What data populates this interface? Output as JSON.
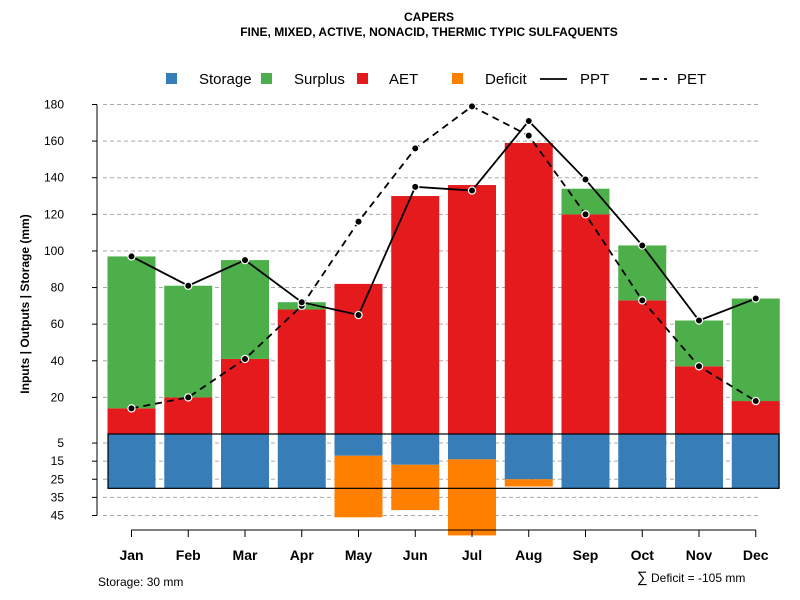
{
  "chart_data": {
    "type": "bar",
    "title": "CAPERS",
    "subtitle": "FINE, MIXED, ACTIVE, NONACID, THERMIC TYPIC SULFAQUENTS",
    "ylabel": "Inputs | Outputs | Storage    (mm)",
    "categories": [
      "Jan",
      "Feb",
      "Mar",
      "Apr",
      "May",
      "Jun",
      "Jul",
      "Aug",
      "Sep",
      "Oct",
      "Nov",
      "Dec"
    ],
    "upper_ylim": [
      0,
      180
    ],
    "upper_yticks": [
      20,
      40,
      60,
      80,
      100,
      120,
      140,
      160,
      180
    ],
    "lower_ylim": [
      0,
      45
    ],
    "lower_yticks": [
      5,
      15,
      25,
      35,
      45
    ],
    "series": [
      {
        "name": "AET",
        "type": "bar",
        "color": "#E41A1C",
        "values": [
          14,
          20,
          41,
          68,
          82,
          130,
          136,
          159,
          120,
          73,
          37,
          18
        ]
      },
      {
        "name": "Surplus",
        "type": "bar",
        "color": "#4DAF4A",
        "values": [
          83,
          61,
          54,
          4,
          0,
          0,
          0,
          0,
          14,
          30,
          25,
          56
        ]
      },
      {
        "name": "Storage",
        "type": "bar",
        "color": "#377EB8",
        "values": [
          30,
          30,
          30,
          30,
          12,
          17,
          14,
          25,
          30,
          30,
          30,
          30
        ]
      },
      {
        "name": "Deficit",
        "type": "bar",
        "color": "#FF7F00",
        "values": [
          0,
          0,
          0,
          0,
          34,
          25,
          42,
          4,
          0,
          0,
          0,
          0
        ]
      },
      {
        "name": "PPT",
        "type": "line",
        "style": "solid",
        "values": [
          97,
          81,
          95,
          72,
          65,
          135,
          133,
          171,
          139,
          103,
          62,
          74
        ]
      },
      {
        "name": "PET",
        "type": "line",
        "style": "dashed",
        "values": [
          14,
          20,
          41,
          70,
          116,
          156,
          179,
          163,
          120,
          73,
          37,
          18
        ]
      }
    ],
    "legend": {
      "position": "top",
      "items": [
        {
          "label": "Storage",
          "kind": "box",
          "color": "#377EB8"
        },
        {
          "label": "Surplus",
          "kind": "box",
          "color": "#4DAF4A"
        },
        {
          "label": "AET",
          "kind": "box",
          "color": "#E41A1C"
        },
        {
          "label": "Deficit",
          "kind": "box",
          "color": "#FF7F00"
        },
        {
          "label": "PPT",
          "kind": "line-solid"
        },
        {
          "label": "PET",
          "kind": "line-dashed"
        }
      ]
    },
    "storage_note": "Storage: 30 mm",
    "deficit_note": "Deficit = -105 mm",
    "deficit_symbol": "∑",
    "storage_capacity": 30,
    "grid": true
  }
}
